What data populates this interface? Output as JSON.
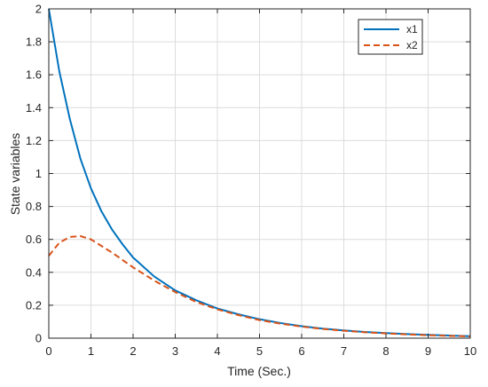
{
  "chart_data": {
    "type": "line",
    "title": "",
    "xlabel": "Time (Sec.)",
    "ylabel": "State variables",
    "xlim": [
      0,
      10
    ],
    "ylim": [
      0,
      2
    ],
    "xticks": [
      "0",
      "1",
      "2",
      "3",
      "4",
      "5",
      "6",
      "7",
      "8",
      "9",
      "10"
    ],
    "yticks": [
      "0",
      "0.2",
      "0.4",
      "0.6",
      "0.8",
      "1",
      "1.2",
      "1.4",
      "1.6",
      "1.8",
      "2"
    ],
    "grid": true,
    "legend_position": "top-right",
    "x": [
      0,
      0.25,
      0.5,
      0.75,
      1,
      1.25,
      1.5,
      1.75,
      2,
      2.5,
      3,
      3.5,
      4,
      4.5,
      5,
      5.5,
      6,
      6.5,
      7,
      7.5,
      8,
      8.5,
      9,
      9.5,
      10
    ],
    "series": [
      {
        "name": "x1",
        "color": "#0072BD",
        "dash": "solid",
        "values": [
          2.0,
          1.62,
          1.33,
          1.09,
          0.91,
          0.77,
          0.66,
          0.57,
          0.49,
          0.375,
          0.29,
          0.23,
          0.18,
          0.145,
          0.115,
          0.092,
          0.073,
          0.058,
          0.047,
          0.038,
          0.031,
          0.025,
          0.02,
          0.016,
          0.012
        ]
      },
      {
        "name": "x2",
        "color": "#D95319",
        "dash": "dashed",
        "values": [
          0.5,
          0.58,
          0.615,
          0.62,
          0.6,
          0.56,
          0.52,
          0.475,
          0.43,
          0.35,
          0.28,
          0.22,
          0.175,
          0.14,
          0.11,
          0.088,
          0.07,
          0.056,
          0.045,
          0.036,
          0.029,
          0.023,
          0.018,
          0.014,
          0.011
        ]
      }
    ]
  }
}
